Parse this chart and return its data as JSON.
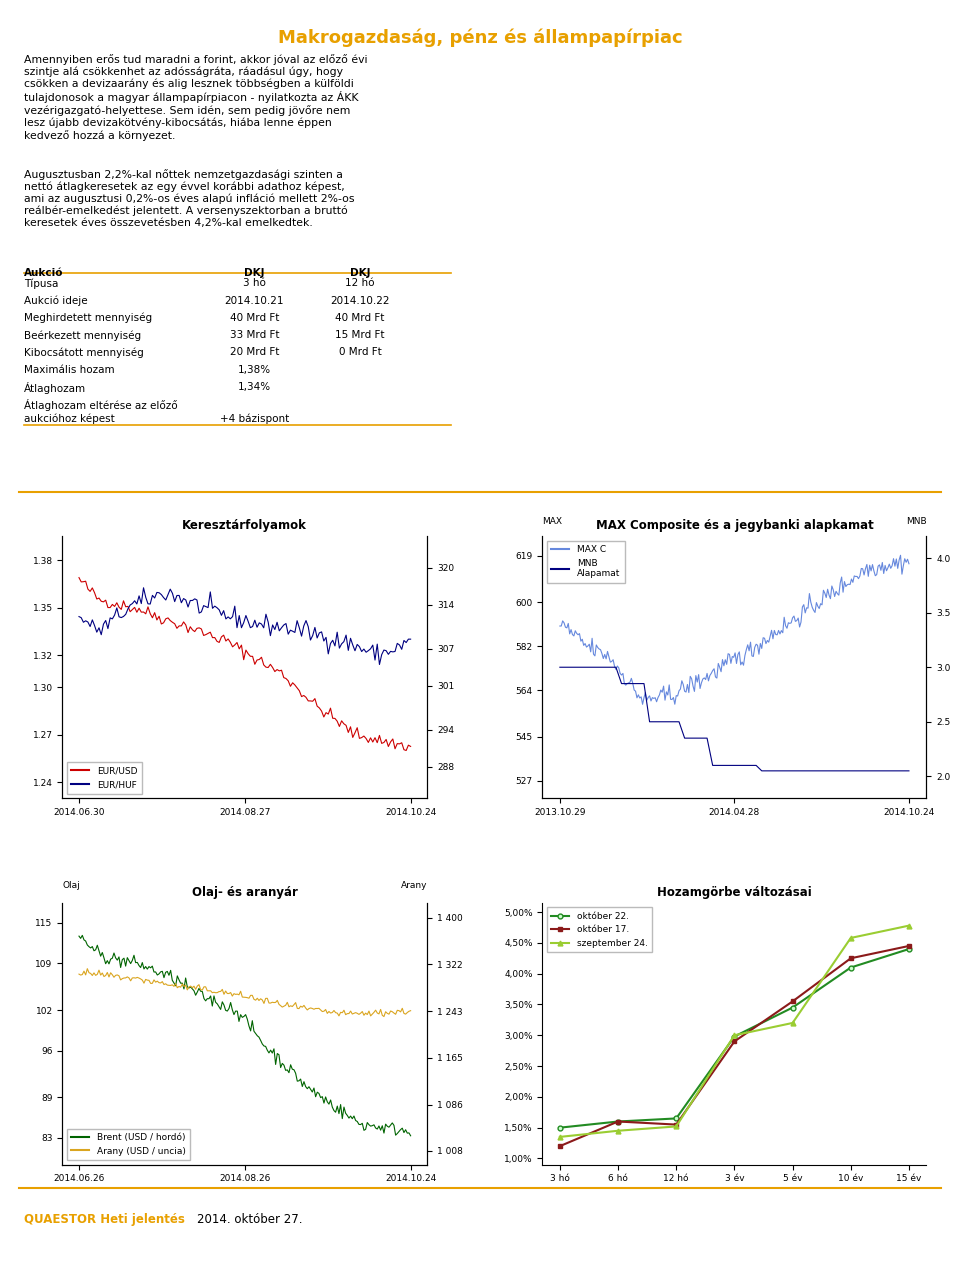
{
  "title": "Makrogazdaság, pénz és állampapírpiac",
  "title_color": "#E8A000",
  "bg_color": "#FFFFFF",
  "text_color": "#000000",
  "table_header": [
    "Aukció",
    "DKJ",
    "DKJ"
  ],
  "table_rows": [
    [
      "Típusa",
      "3 hó",
      "12 hó"
    ],
    [
      "Aukció ideje",
      "2014.10.21",
      "2014.10.22"
    ],
    [
      "Meghirdetett mennyiség",
      "40 Mrd Ft",
      "40 Mrd Ft"
    ],
    [
      "Beérkezett mennyiség",
      "33 Mrd Ft",
      "15 Mrd Ft"
    ],
    [
      "Kibocsátott mennyiség",
      "20 Mrd Ft",
      "0 Mrd Ft"
    ],
    [
      "Maximális hozam",
      "1,38%",
      ""
    ],
    [
      "Átlaghozam",
      "1,34%",
      ""
    ],
    [
      "Átlaghozam eltérése az előző\naukcióhoz képest",
      "+4 bázispont",
      ""
    ]
  ],
  "table_separator_color": "#E8A000",
  "chart1_title": "Keresztárfolyamok",
  "chart1_colors": [
    "#CC0000",
    "#000080"
  ],
  "chart2_title": "MAX Composite és a jegybanki alapkamat",
  "chart2_colors": [
    "#4169E1",
    "#000080"
  ],
  "chart3_title": "Olaj- és aranyár",
  "chart3_colors": [
    "#006400",
    "#DAA520"
  ],
  "chart4_title": "Hozamgörbe változásai",
  "chart4_xlabel": [
    "3 hó",
    "6 hó",
    "12 hó",
    "3 év",
    "5 év",
    "10 év",
    "15 év"
  ],
  "chart4_colors": [
    "#228B22",
    "#8B1A1A",
    "#9ACD32"
  ],
  "footer_bold": "QUAESTOR Heti jelentés",
  "footer_bold_color": "#E8A000",
  "footer_text": "2014. október 27.",
  "separator_color": "#E8A000"
}
